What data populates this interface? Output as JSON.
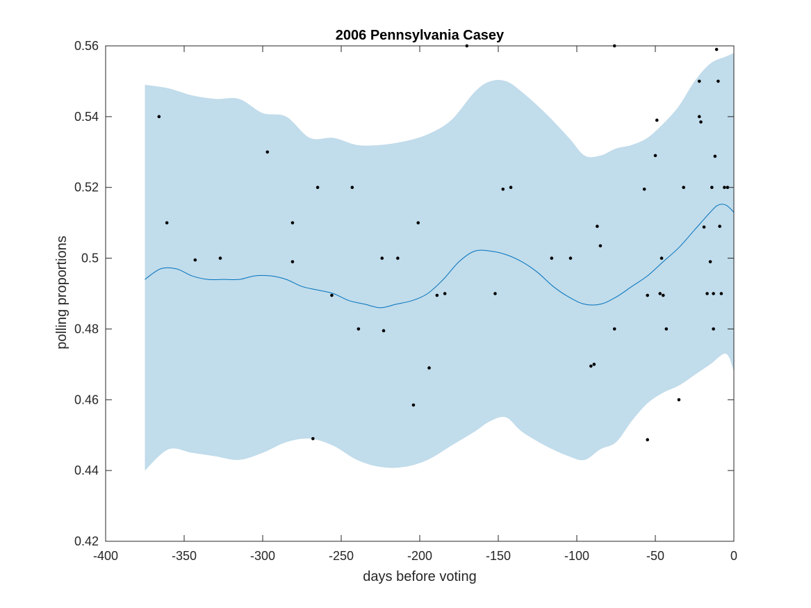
{
  "chart_data": {
    "type": "line",
    "title": "2006 Pennsylvania Casey",
    "xlabel": "days before voting",
    "ylabel": "polling proportions",
    "xlim": [
      -400,
      0
    ],
    "ylim": [
      0.42,
      0.56
    ],
    "xticks": [
      -400,
      -350,
      -300,
      -250,
      -200,
      -150,
      -100,
      -50,
      0
    ],
    "xtick_labels": [
      "-400",
      "-350",
      "-300",
      "-250",
      "-200",
      "-150",
      "-100",
      "-50",
      "0"
    ],
    "yticks": [
      0.42,
      0.44,
      0.46,
      0.48,
      0.5,
      0.52,
      0.54,
      0.56
    ],
    "ytick_labels": [
      "0.42",
      "0.44",
      "0.46",
      "0.48",
      "0.5",
      "0.52",
      "0.54",
      "0.56"
    ],
    "grid": false,
    "colors": {
      "band": "#c1dceb",
      "line": "#0072bd",
      "points": "#000000",
      "axes": "#262626"
    },
    "band_upper": {
      "x": [
        -375,
        -360,
        -345,
        -330,
        -315,
        -300,
        -285,
        -270,
        -255,
        -240,
        -225,
        -210,
        -195,
        -180,
        -165,
        -155,
        -145,
        -135,
        -120,
        -105,
        -95,
        -85,
        -75,
        -65,
        -55,
        -45,
        -35,
        -25,
        -15,
        -5,
        0
      ],
      "y": [
        0.549,
        0.548,
        0.546,
        0.545,
        0.545,
        0.541,
        0.54,
        0.534,
        0.534,
        0.532,
        0.532,
        0.533,
        0.535,
        0.539,
        0.547,
        0.55,
        0.55,
        0.547,
        0.541,
        0.534,
        0.529,
        0.529,
        0.531,
        0.532,
        0.534,
        0.538,
        0.543,
        0.55,
        0.555,
        0.557,
        0.558
      ]
    },
    "band_lower": {
      "x": [
        -375,
        -360,
        -345,
        -330,
        -315,
        -300,
        -285,
        -270,
        -255,
        -240,
        -225,
        -210,
        -195,
        -180,
        -165,
        -155,
        -145,
        -135,
        -120,
        -105,
        -95,
        -85,
        -75,
        -65,
        -55,
        -45,
        -35,
        -25,
        -15,
        -5,
        0
      ],
      "y": [
        0.44,
        0.446,
        0.445,
        0.444,
        0.443,
        0.445,
        0.448,
        0.449,
        0.447,
        0.443,
        0.441,
        0.441,
        0.443,
        0.447,
        0.451,
        0.454,
        0.455,
        0.451,
        0.447,
        0.444,
        0.443,
        0.446,
        0.448,
        0.454,
        0.459,
        0.462,
        0.464,
        0.467,
        0.47,
        0.473,
        0.468
      ]
    },
    "series": [
      {
        "x": [
          -375,
          -365,
          -355,
          -345,
          -335,
          -325,
          -315,
          -305,
          -295,
          -285,
          -275,
          -265,
          -255,
          -245,
          -235,
          -225,
          -215,
          -205,
          -195,
          -185,
          -175,
          -165,
          -155,
          -145,
          -135,
          -125,
          -115,
          -105,
          -95,
          -85,
          -75,
          -65,
          -55,
          -45,
          -35,
          -25,
          -15,
          -10,
          -5,
          0
        ],
        "y": [
          0.494,
          0.497,
          0.497,
          0.495,
          0.494,
          0.494,
          0.494,
          0.495,
          0.495,
          0.494,
          0.492,
          0.491,
          0.49,
          0.488,
          0.487,
          0.486,
          0.487,
          0.488,
          0.49,
          0.494,
          0.499,
          0.502,
          0.502,
          0.501,
          0.499,
          0.496,
          0.492,
          0.489,
          0.487,
          0.487,
          0.489,
          0.492,
          0.495,
          0.499,
          0.503,
          0.508,
          0.513,
          0.515,
          0.515,
          0.513
        ]
      }
    ],
    "points": {
      "x": [
        -366,
        -361,
        -343,
        -327,
        -297,
        -281,
        -281,
        -265,
        -268,
        -256,
        -243,
        -239,
        -224,
        -223,
        -214,
        -204,
        -201,
        -194,
        -189,
        -184,
        -170,
        -152,
        -147,
        -142,
        -116,
        -104,
        -91,
        -89,
        -87,
        -85,
        -76,
        -76,
        -57,
        -55,
        -55,
        -50,
        -49,
        -47,
        -46,
        -45,
        -43,
        -35,
        -32,
        -22,
        -22,
        -21,
        -19,
        -17,
        -15,
        -14,
        -13,
        -13,
        -12,
        -11,
        -10,
        -9,
        -8,
        -6,
        -4
      ],
      "y": [
        0.54,
        0.51,
        0.4995,
        0.5,
        0.53,
        0.51,
        0.499,
        0.52,
        0.449,
        0.4895,
        0.52,
        0.48,
        0.5,
        0.4795,
        0.5,
        0.4585,
        0.51,
        0.469,
        0.4895,
        0.49,
        0.56,
        0.49,
        0.5195,
        0.52,
        0.5,
        0.5,
        0.4695,
        0.47,
        0.509,
        0.5035,
        0.48,
        0.56,
        0.5195,
        0.4895,
        0.4487,
        0.529,
        0.539,
        0.49,
        0.5,
        0.4895,
        0.48,
        0.46,
        0.52,
        0.54,
        0.55,
        0.5385,
        0.5088,
        0.49,
        0.499,
        0.52,
        0.48,
        0.49,
        0.5288,
        0.559,
        0.55,
        0.509,
        0.49,
        0.52,
        0.52
      ]
    }
  }
}
